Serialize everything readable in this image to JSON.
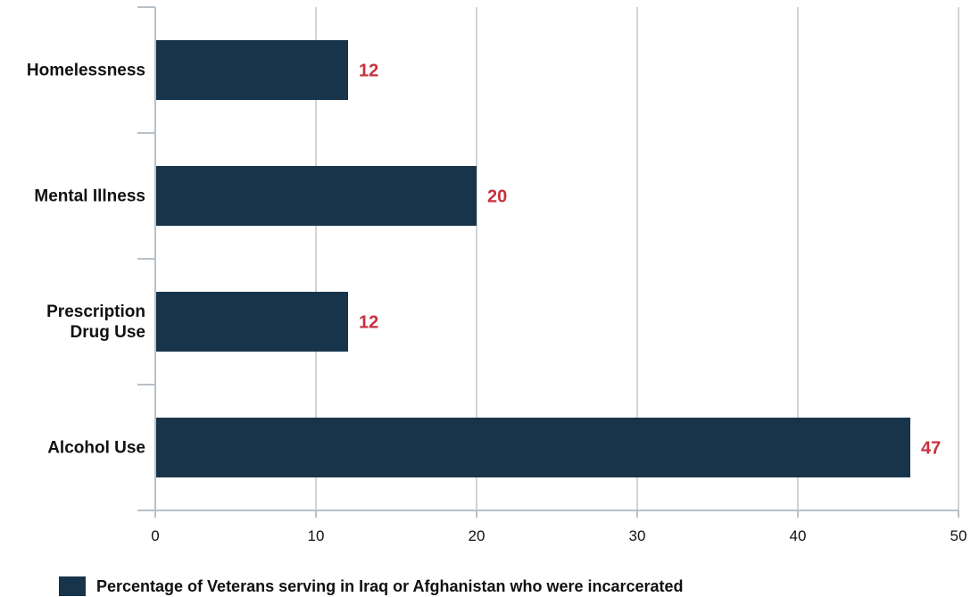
{
  "colors": {
    "bar": "#18344a",
    "data_label": "#c8303c",
    "grid": "#cfd4d9",
    "axis": "#b8c0c8"
  },
  "chart_data": {
    "type": "bar",
    "orientation": "horizontal",
    "categories": [
      [
        "Homelessness"
      ],
      [
        "Mental Illness"
      ],
      [
        "Prescription",
        "Drug Use"
      ],
      [
        "Alcohol Use"
      ]
    ],
    "series": [
      {
        "name": "Percentage of Veterans serving in Iraq or Afghanistan who were incarcerated",
        "values": [
          12,
          20,
          12,
          47
        ]
      }
    ],
    "xlim": [
      0,
      50
    ],
    "xticks": [
      0,
      10,
      20,
      30,
      40,
      50
    ],
    "grid": true,
    "legend_position": "bottom-left",
    "data_labels": true
  }
}
